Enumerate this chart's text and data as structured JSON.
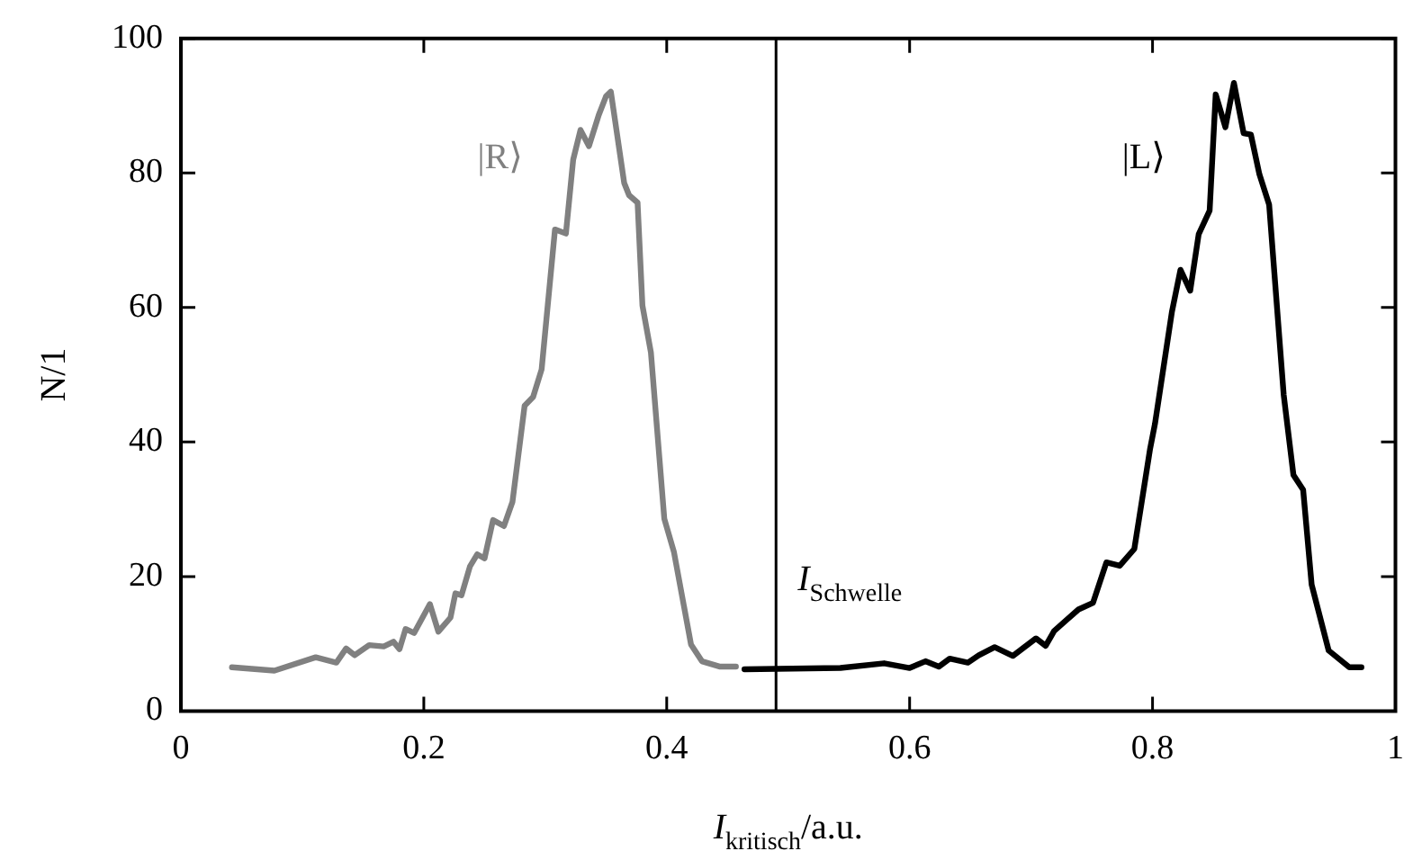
{
  "chart_data": {
    "type": "line",
    "xlabel": "I$_{kritisch}$/a.u.",
    "ylabel": "N/1",
    "xlim": [
      0,
      1
    ],
    "xticks": [
      0,
      0.2,
      0.4,
      0.6,
      0.8,
      1
    ],
    "ylim": [
      0,
      100
    ],
    "yticks": [
      0,
      20,
      40,
      60,
      80,
      100
    ],
    "legend": false,
    "marker": "none",
    "line_style": "solid",
    "series": [
      {
        "name": "|R⟩",
        "color": "#808080",
        "x": [
          0.042,
          0.077,
          0.111,
          0.128,
          0.136,
          0.143,
          0.155,
          0.167,
          0.175,
          0.18,
          0.185,
          0.192,
          0.205,
          0.212,
          0.222,
          0.226,
          0.231,
          0.238,
          0.244,
          0.25,
          0.257,
          0.266,
          0.273,
          0.283,
          0.29,
          0.297,
          0.308,
          0.317,
          0.323,
          0.329,
          0.336,
          0.344,
          0.35,
          0.354,
          0.365,
          0.369,
          0.376,
          0.38,
          0.387,
          0.398,
          0.406,
          0.42,
          0.429,
          0.444,
          0.457
        ],
        "values": [
          6.5,
          6,
          8,
          7.2,
          9.3,
          8.3,
          9.8,
          9.6,
          10.3,
          9.2,
          12.2,
          11.6,
          15.9,
          11.8,
          13.9,
          17.5,
          17.2,
          21.5,
          23.3,
          22.7,
          28.4,
          27.5,
          31.1,
          45.4,
          46.7,
          50.8,
          71.6,
          71,
          82,
          86.4,
          84,
          88.6,
          91.4,
          92.1,
          78.5,
          76.7,
          75.6,
          60.3,
          53.3,
          28.6,
          23.6,
          9.9,
          7.4,
          6.6,
          6.6
        ]
      },
      {
        "name": "|L⟩",
        "color": "#000000",
        "x": [
          0.464,
          0.543,
          0.579,
          0.6,
          0.613,
          0.624,
          0.633,
          0.648,
          0.657,
          0.67,
          0.685,
          0.704,
          0.712,
          0.719,
          0.729,
          0.739,
          0.751,
          0.762,
          0.773,
          0.785,
          0.798,
          0.802,
          0.816,
          0.823,
          0.831,
          0.838,
          0.847,
          0.852,
          0.86,
          0.867,
          0.875,
          0.881,
          0.888,
          0.896,
          0.908,
          0.916,
          0.924,
          0.931,
          0.945,
          0.962,
          0.972
        ],
        "values": [
          6.2,
          6.4,
          7.1,
          6.4,
          7.4,
          6.6,
          7.8,
          7.2,
          8.3,
          9.5,
          8.2,
          10.8,
          9.7,
          11.9,
          13.5,
          15.1,
          16.1,
          22.1,
          21.6,
          24.1,
          39,
          42.7,
          59.4,
          65.6,
          62.5,
          70.9,
          74.4,
          91.7,
          86.8,
          93.4,
          85.9,
          85.7,
          79.8,
          75.3,
          47,
          35.1,
          32.9,
          18.8,
          9,
          6.5,
          6.5
        ]
      }
    ],
    "ref_lines": [
      {
        "axis": "x",
        "value": 0.49,
        "label": "I$_{Schwelle}$",
        "color": "#000000",
        "line_style": "solid"
      }
    ]
  }
}
